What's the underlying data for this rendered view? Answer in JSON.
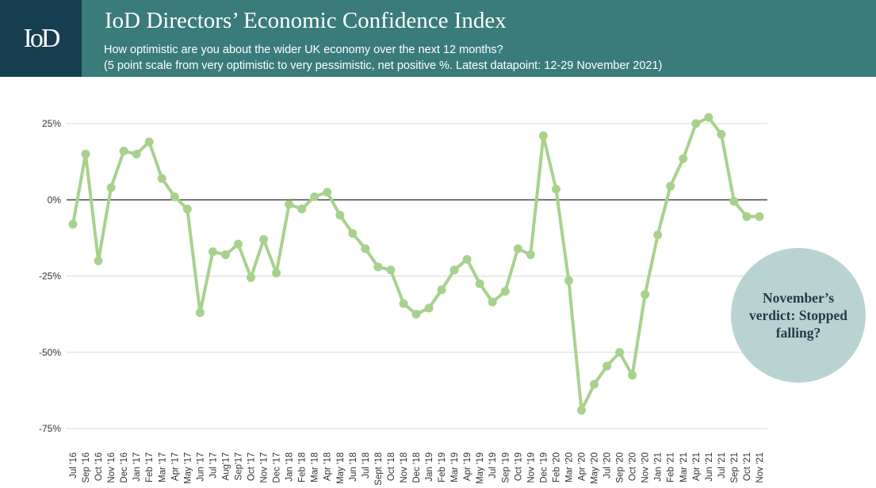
{
  "header": {
    "logo_text": "IoD",
    "title": "IoD Directors’ Economic Confidence Index",
    "subtitle_line1": "How optimistic are you about the wider UK economy over the next 12 months?",
    "subtitle_line2": " (5 point scale from very optimistic to very pessimistic, net positive %. Latest datapoint: 12-29 November 2021)"
  },
  "callout": {
    "text": "November’s verdict: Stopped falling?"
  },
  "colors": {
    "header_bg": "#3a7b7c",
    "logo_bg": "#163e4e",
    "series": "#a9d18e",
    "callout_bg": "#b9d3d2"
  },
  "chart_data": {
    "type": "line",
    "ylim": [
      -75,
      25
    ],
    "yticks": [
      25,
      0,
      -25,
      -50,
      -75
    ],
    "ytick_labels": [
      "25%",
      "0%",
      "-25%",
      "-50%",
      "-75%"
    ],
    "grid": true,
    "categories": [
      "Jul '16",
      "Sep '16",
      "Oct '16",
      "Nov '16",
      "Dec '16",
      "Jan '17",
      "Feb '17",
      "Mar '17",
      "Apr '17",
      "May '17",
      "Jun '17",
      "Jul '17",
      "Aug'17",
      "Sep'17",
      "Oct '17",
      "Nov '17",
      "Dec '17",
      "Jan '18",
      "Feb '18",
      "Mar '18",
      "Apr '18",
      "May '18",
      "Jun '18",
      "Jul '18",
      "Sept '18",
      "Oct '18",
      "Nov '18",
      "Dec '18",
      "Jan '19",
      "Feb '19",
      "Mar '19",
      "Apr '19",
      "May '19",
      "Jul '19",
      "Sep '19",
      "Oct '19",
      "Nov '19",
      "Dec '19",
      "Feb '20",
      "Mar '20",
      "Apr '20",
      "May '20",
      "Jul '20",
      "Sep '20",
      "Oct '20",
      "Nov '20",
      "Jan '21",
      "Feb '21",
      "Mar '21",
      "Apr '21",
      "Jun '21",
      "Jul '21",
      "Sep '21",
      "Oct '21",
      "Nov '21"
    ],
    "values": [
      -8,
      15,
      -20,
      4,
      16,
      15,
      19,
      7,
      1,
      -3,
      -37,
      -17,
      -18,
      -14.5,
      -25.5,
      -13,
      -24,
      -1.5,
      -3,
      1,
      2.5,
      -5,
      -11,
      -16,
      -22,
      -23,
      -34,
      -37.5,
      -35.5,
      -29.5,
      -23,
      -19.5,
      -27.5,
      -33.5,
      -30,
      -16,
      -18,
      21,
      3.5,
      -26.5,
      -69,
      -60.5,
      -54.5,
      -50,
      -57.5,
      -31,
      -11.5,
      4.5,
      13.5,
      25,
      27,
      21.5,
      -0.5,
      -5.5,
      -5.5
    ]
  }
}
